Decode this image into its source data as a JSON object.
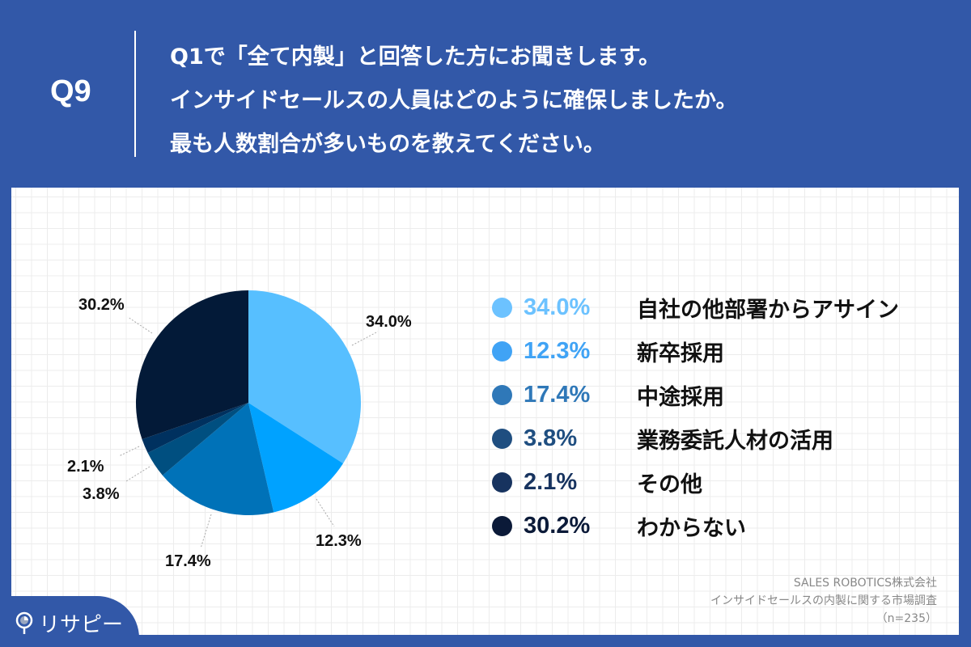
{
  "header": {
    "question_number": "Q9",
    "question_lines": [
      "Q1で「全て内製」と回答した方にお聞きします。",
      "インサイドセールスの人員はどのように確保しましたか。",
      "最も人数割合が多いものを教えてください。"
    ]
  },
  "legend": [
    {
      "pct": "34.0%",
      "label": "自社の他部署からアサイン",
      "color": "#57bfff"
    },
    {
      "pct": "12.3%",
      "label": "新卒採用",
      "color": "#40a3f5"
    },
    {
      "pct": "17.4%",
      "label": "中途採用",
      "color": "#2f78b8"
    },
    {
      "pct": "3.8%",
      "label": "業務委託人材の活用",
      "color": "#1f4e80"
    },
    {
      "pct": "2.1%",
      "label": "その他",
      "color": "#17335f"
    },
    {
      "pct": "30.2%",
      "label": "わからない",
      "color": "#0b1a38"
    }
  ],
  "source": {
    "line1": "SALES ROBOTICS株式会社",
    "line2": "インサイドセールスの内製に関する市場調査",
    "line3": "（n=235）"
  },
  "logo": {
    "text": "リサピー"
  },
  "colors": {
    "brand_blue": "#3258a8"
  },
  "chart_data": {
    "type": "pie",
    "title": "インサイドセールスの人員はどのように確保しましたか。",
    "categories": [
      "自社の他部署からアサイン",
      "新卒採用",
      "中途採用",
      "業務委託人材の活用",
      "その他",
      "わからない"
    ],
    "values": [
      34.0,
      12.3,
      17.4,
      3.8,
      2.1,
      30.2
    ],
    "colors": [
      "#57bfff",
      "#00a2ff",
      "#0072b8",
      "#004f80",
      "#00315f",
      "#031a38"
    ],
    "unit": "%",
    "start_angle": "12 o'clock, clockwise",
    "n": 235,
    "legend_position": "right"
  }
}
